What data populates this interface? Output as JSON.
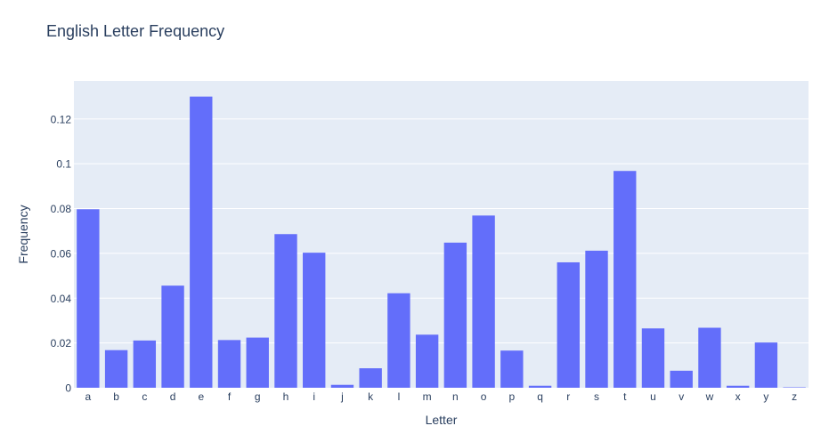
{
  "chart_data": {
    "type": "bar",
    "title": "English Letter Frequency",
    "xlabel": "Letter",
    "ylabel": "Frequency",
    "categories": [
      "a",
      "b",
      "c",
      "d",
      "e",
      "f",
      "g",
      "h",
      "i",
      "j",
      "k",
      "l",
      "m",
      "n",
      "o",
      "p",
      "q",
      "r",
      "s",
      "t",
      "u",
      "v",
      "w",
      "x",
      "y",
      "z"
    ],
    "values": [
      0.0797,
      0.0168,
      0.0211,
      0.0456,
      0.13,
      0.0213,
      0.0224,
      0.0686,
      0.0603,
      0.0013,
      0.0087,
      0.0422,
      0.0237,
      0.0648,
      0.0769,
      0.0166,
      0.0009,
      0.056,
      0.0612,
      0.0968,
      0.0265,
      0.0076,
      0.0268,
      0.0009,
      0.0202,
      0.0002
    ],
    "yticks": [
      0,
      0.02,
      0.04,
      0.06,
      0.08,
      0.1,
      0.12
    ],
    "ytick_labels": [
      "0",
      "0.02",
      "0.04",
      "0.06",
      "0.08",
      "0.1",
      "0.12"
    ],
    "ylim": [
      0,
      0.137
    ],
    "grid": true,
    "colors": {
      "bar": "#636efa",
      "plot_bg": "#e5ecf6",
      "grid": "#ffffff",
      "text": "#2a3f5f"
    }
  }
}
